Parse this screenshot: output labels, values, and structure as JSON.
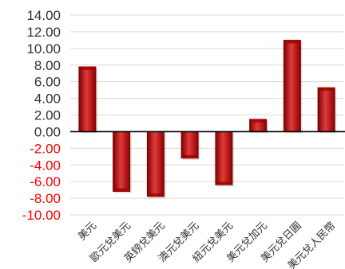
{
  "chart_data": {
    "type": "bar",
    "title": "",
    "xlabel": "",
    "ylabel": "",
    "categories": [
      "美元",
      "歐元兌美元",
      "英鎊兌美元",
      "澳元兌美元",
      "紐元兌美元",
      "美元兌加元",
      "美元兌日圓",
      "美元兌人民幣"
    ],
    "values": [
      7.8,
      -7.2,
      -7.8,
      -3.2,
      -6.4,
      1.5,
      11.0,
      5.3
    ],
    "ylim": [
      -10,
      14
    ],
    "yticks": [
      "14.00",
      "12.00",
      "10.00",
      "8.00",
      "6.00",
      "4.00",
      "2.00",
      "0.00",
      "-2.00",
      "-4.00",
      "-6.00",
      "-8.00",
      "-10.00"
    ],
    "grid": true,
    "legend": "none",
    "colors": {
      "bar": "#c00000",
      "bar_dark": "#7a0000",
      "bar_light": "#e23a3a",
      "positive_tick": "#333333",
      "negative_tick": "#ff0000",
      "grid": "#d9d9d9",
      "zero_line": "#000000"
    }
  }
}
